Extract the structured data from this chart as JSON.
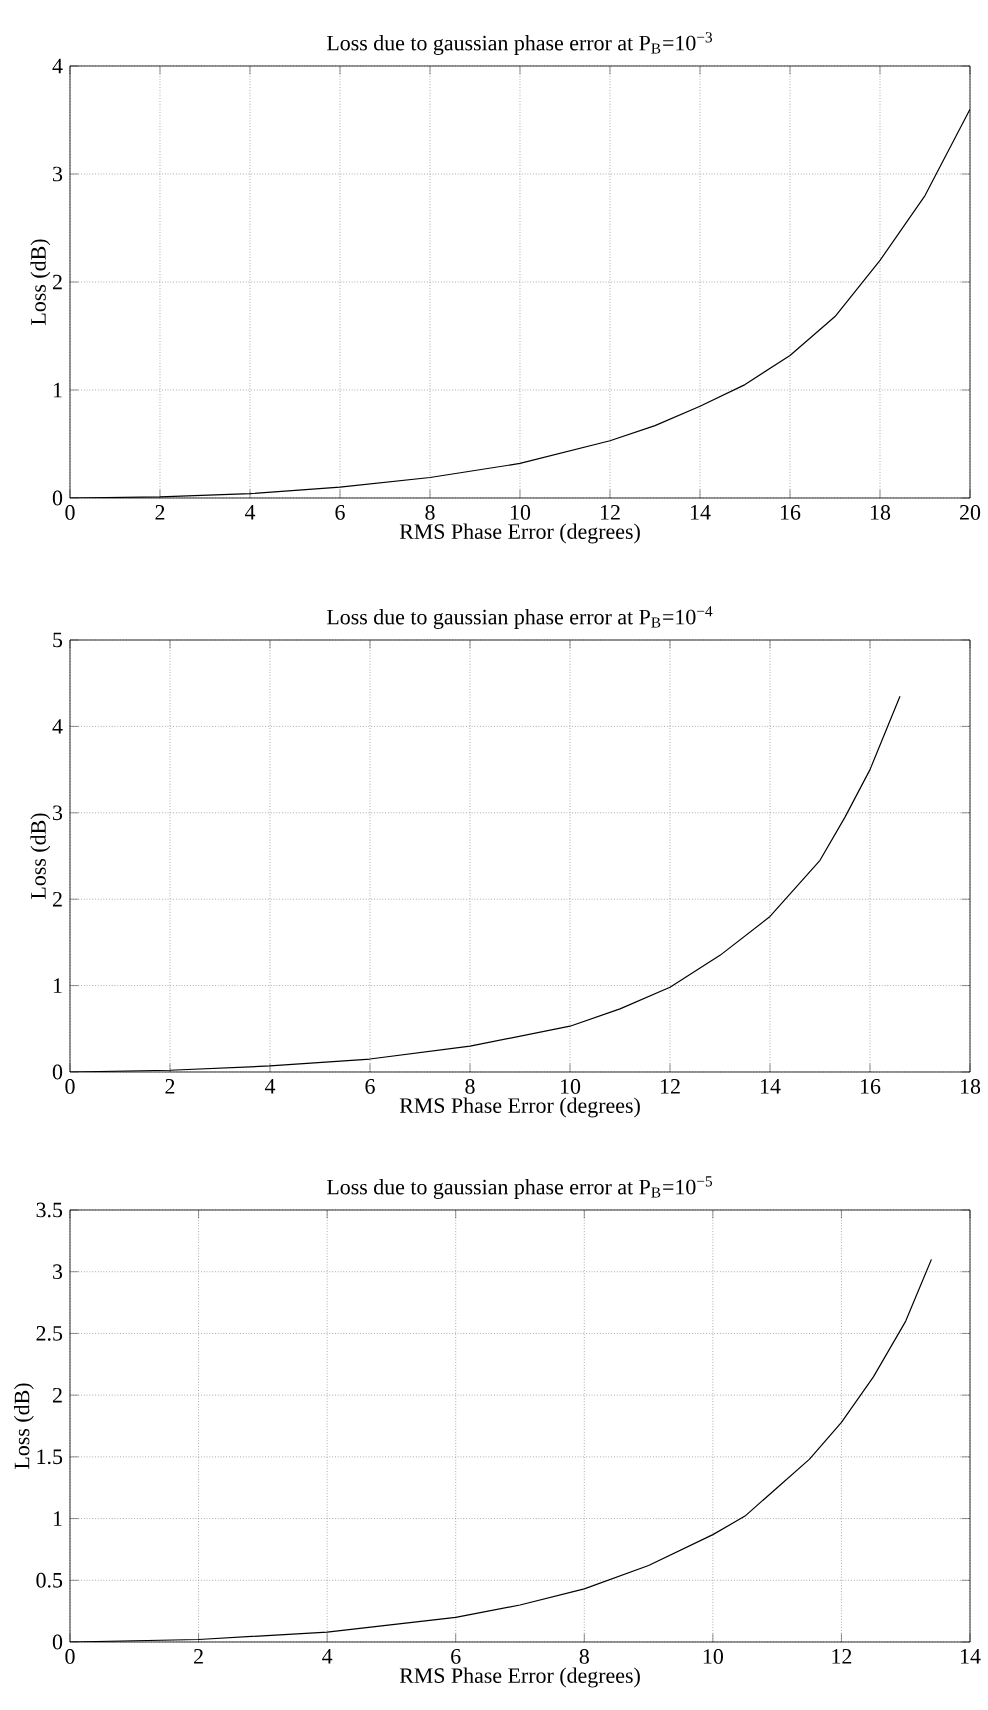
{
  "chart_data": [
    {
      "type": "line",
      "title": "Loss due to gaussian phase error at P$_{B}$=10$^{−3}$",
      "xlabel": "RMS Phase Error (degrees)",
      "ylabel": "Loss (dB)",
      "color": "#000000",
      "grid": true,
      "x": [
        0,
        2,
        4,
        6,
        8,
        10,
        12,
        13,
        14,
        15,
        16,
        17,
        18,
        19,
        19.5,
        20
      ],
      "values": [
        0,
        0.01,
        0.04,
        0.1,
        0.19,
        0.32,
        0.53,
        0.67,
        0.85,
        1.05,
        1.32,
        1.68,
        2.2,
        2.8,
        3.2,
        3.6
      ],
      "xlim": [
        0,
        20
      ],
      "ylim": [
        0,
        4
      ],
      "xticks": [
        0,
        2,
        4,
        6,
        8,
        10,
        12,
        14,
        16,
        18,
        20
      ],
      "yticks": [
        0,
        1,
        2,
        3,
        4
      ]
    },
    {
      "type": "line",
      "title": "Loss due to gaussian phase error at P$_{B}$=10$^{−4}$",
      "xlabel": "RMS Phase Error (degrees)",
      "ylabel": "Loss (dB)",
      "color": "#000000",
      "grid": true,
      "x": [
        0,
        2,
        4,
        6,
        8,
        10,
        11,
        12,
        13,
        14,
        15,
        15.5,
        16,
        16.6
      ],
      "values": [
        0,
        0.02,
        0.07,
        0.15,
        0.3,
        0.53,
        0.73,
        0.98,
        1.35,
        1.8,
        2.45,
        2.95,
        3.5,
        4.35
      ],
      "xlim": [
        0,
        18
      ],
      "ylim": [
        0,
        5
      ],
      "xticks": [
        0,
        2,
        4,
        6,
        8,
        10,
        12,
        14,
        16,
        18
      ],
      "yticks": [
        0,
        1,
        2,
        3,
        4,
        5
      ]
    },
    {
      "type": "line",
      "title": "Loss due to gaussian phase error at P$_{B}$=10$^{−5}$",
      "xlabel": "RMS Phase Error (degrees)",
      "ylabel": "Loss (dB)",
      "color": "#000000",
      "grid": true,
      "x": [
        0,
        2,
        4,
        6,
        7,
        8,
        9,
        10,
        10.5,
        11,
        11.5,
        12,
        12.5,
        13,
        13.4
      ],
      "values": [
        0,
        0.02,
        0.08,
        0.2,
        0.3,
        0.43,
        0.62,
        0.87,
        1.02,
        1.25,
        1.48,
        1.78,
        2.15,
        2.6,
        3.1
      ],
      "xlim": [
        0,
        14
      ],
      "ylim": [
        0,
        3.5
      ],
      "xticks": [
        0,
        2,
        4,
        6,
        8,
        10,
        12,
        14
      ],
      "yticks": [
        0,
        0.5,
        1,
        1.5,
        2,
        2.5,
        3,
        3.5
      ]
    }
  ]
}
